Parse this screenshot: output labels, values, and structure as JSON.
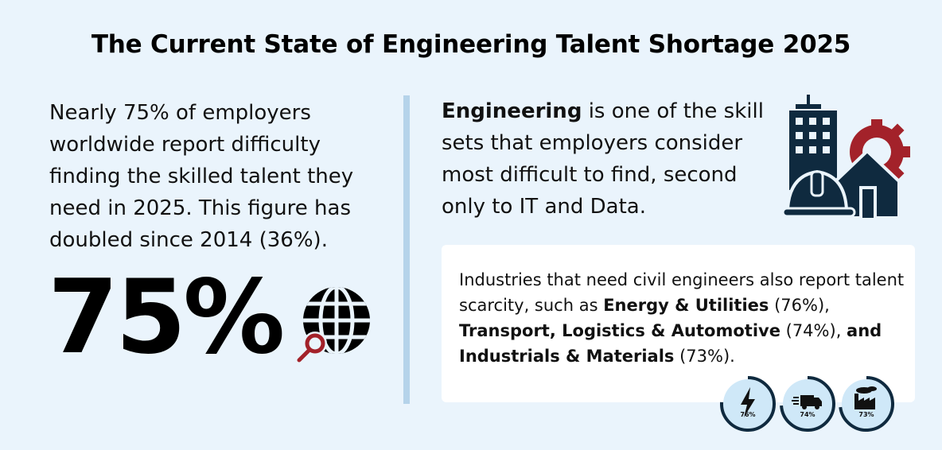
{
  "title": "The Current State of Engineering Talent Shortage 2025",
  "left": {
    "paragraph": "Nearly 75% of employers worldwide report difficulty finding the skilled talent they need in 2025. This figure has doubled since 2014 (36%).",
    "big_stat": "75%",
    "icon": "globe-search-icon"
  },
  "right": {
    "intro_bold": "Engineering",
    "intro_rest": " is one of the skill sets that employers consider most difficult to find, second only to IT and Data.",
    "icon": "building-gear-hardhat-icon"
  },
  "card": {
    "t1": "Industries that need civil engineers also report talent scarcity, such as ",
    "b1": "Energy & Utilities",
    "t2": " (76%), ",
    "b2": "Transport, Logistics & Automotive",
    "t3": " (74%), ",
    "b3": "and Industrials & Materials",
    "t4": " (73%)."
  },
  "badges": [
    {
      "label": "76%",
      "value": 76,
      "icon": "lightning-icon"
    },
    {
      "label": "74%",
      "value": 74,
      "icon": "truck-icon"
    },
    {
      "label": "73%",
      "value": 73,
      "icon": "factory-icon"
    }
  ],
  "colors": {
    "navy": "#0f2a3f",
    "red": "#a3222a",
    "divider": "#b5d3ea",
    "badge_fill": "#cfe8f8",
    "background": "#eaf4fc"
  }
}
